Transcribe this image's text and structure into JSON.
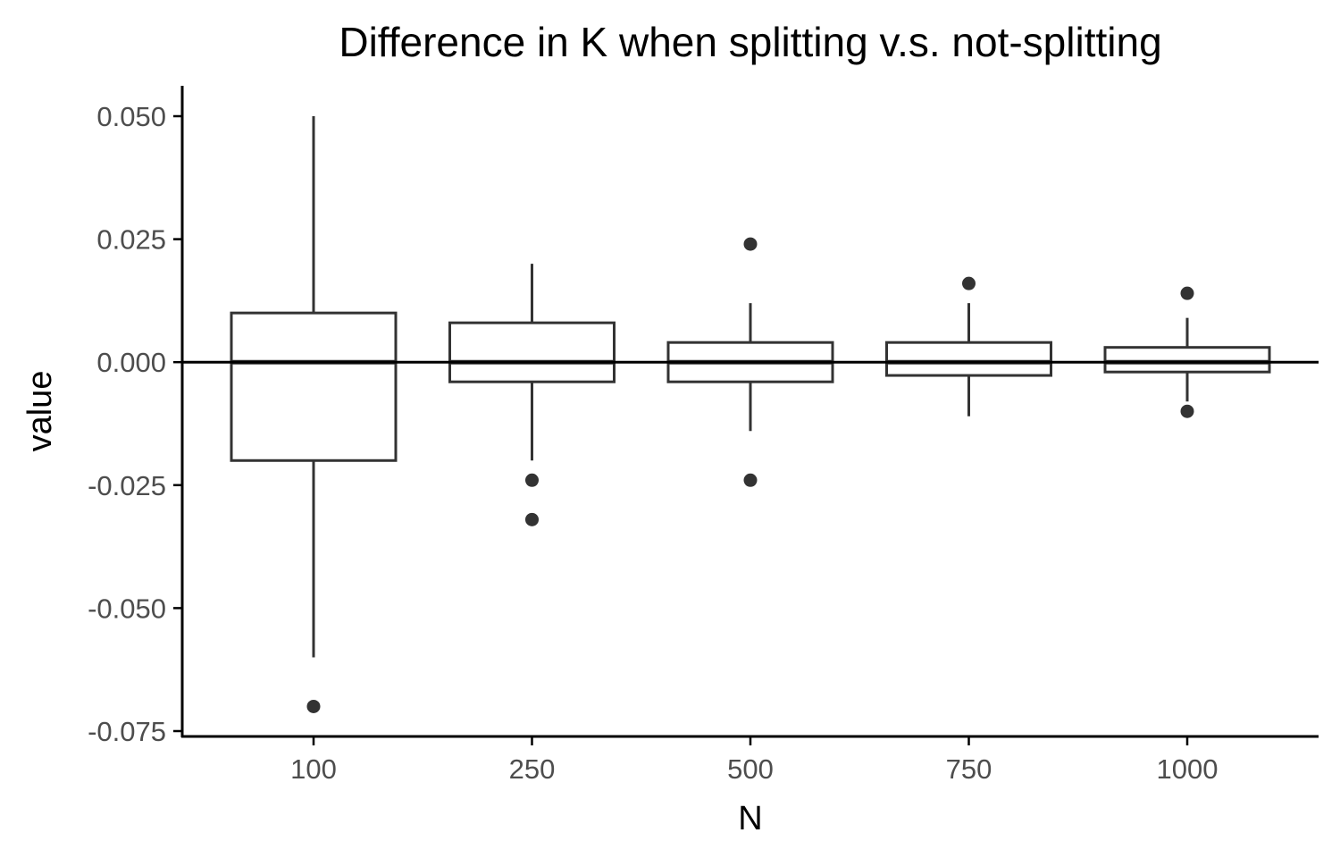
{
  "chart_data": {
    "type": "boxplot",
    "title": "Difference in K when splitting v.s. not-splitting",
    "xlabel": "N",
    "ylabel": "value",
    "categories": [
      "100",
      "250",
      "500",
      "750",
      "1000"
    ],
    "ylim": [
      -0.076,
      0.056
    ],
    "yticks": [
      0.05,
      0.025,
      0.0,
      -0.025,
      -0.05,
      -0.075
    ],
    "ytick_labels": [
      "0.050",
      "0.025",
      "0.000",
      "-0.025",
      "-0.050",
      "-0.075"
    ],
    "reference_line_y": 0.0,
    "grid": false,
    "legend": "none",
    "boxes": [
      {
        "category": "100",
        "whisker_low": -0.06,
        "q1": -0.02,
        "median": 0.0,
        "q3": 0.01,
        "whisker_high": 0.05,
        "outliers": [
          -0.07
        ]
      },
      {
        "category": "250",
        "whisker_low": -0.02,
        "q1": -0.004,
        "median": 0.0,
        "q3": 0.008,
        "whisker_high": 0.02,
        "outliers": [
          -0.024,
          -0.032
        ]
      },
      {
        "category": "500",
        "whisker_low": -0.014,
        "q1": -0.004,
        "median": 0.0,
        "q3": 0.004,
        "whisker_high": 0.012,
        "outliers": [
          0.024,
          -0.024
        ]
      },
      {
        "category": "750",
        "whisker_low": -0.011,
        "q1": -0.0027,
        "median": 0.0,
        "q3": 0.004,
        "whisker_high": 0.012,
        "outliers": [
          0.016
        ]
      },
      {
        "category": "1000",
        "whisker_low": -0.008,
        "q1": -0.002,
        "median": 0.0,
        "q3": 0.003,
        "whisker_high": 0.009,
        "outliers": [
          0.014,
          -0.01
        ]
      }
    ],
    "colors": {
      "box_stroke": "#333333",
      "box_fill": "#ffffff",
      "point": "#333333",
      "axis": "#000000",
      "reference_line": "#000000",
      "tick_label": "#4d4d4d"
    }
  }
}
